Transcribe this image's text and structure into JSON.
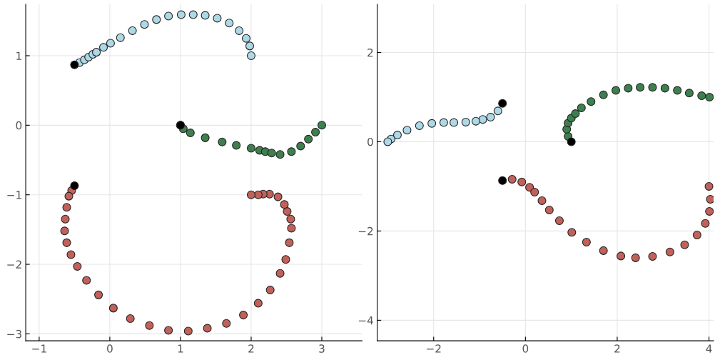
{
  "chart_data": [
    {
      "type": "scatter",
      "xlim": [
        -1.19,
        3.57
      ],
      "ylim": [
        -3.1,
        1.74
      ],
      "xticks": [
        -1,
        0,
        1,
        2,
        3
      ],
      "yticks": [
        -3,
        -2,
        -1,
        0,
        1
      ],
      "grid": true,
      "marker": "circle",
      "series": [
        {
          "color": "#add8e6",
          "x": [
            -0.43,
            -0.36,
            -0.3,
            -0.24,
            -0.19,
            -0.09,
            0.01,
            0.15,
            0.32,
            0.49,
            0.66,
            0.83,
            1.01,
            1.18,
            1.35,
            1.52,
            1.69,
            1.83,
            1.93,
            1.98,
            2.0
          ],
          "values": [
            0.9,
            0.94,
            0.98,
            1.02,
            1.05,
            1.12,
            1.18,
            1.26,
            1.36,
            1.45,
            1.52,
            1.57,
            1.59,
            1.59,
            1.58,
            1.54,
            1.47,
            1.36,
            1.25,
            1.14,
            1.0
          ]
        },
        {
          "color": "#3f7f4f",
          "x": [
            1.0,
            1.04,
            1.14,
            1.35,
            1.59,
            1.79,
            2.0,
            2.12,
            2.2,
            2.29,
            2.41,
            2.57,
            2.7,
            2.81,
            2.91,
            3.0
          ],
          "values": [
            0,
            -0.05,
            -0.11,
            -0.18,
            -0.24,
            -0.29,
            -0.33,
            -0.36,
            -0.38,
            -0.4,
            -0.42,
            -0.38,
            -0.3,
            -0.2,
            -0.1,
            0
          ]
        },
        {
          "color": "#c1615a",
          "x": [
            -0.54,
            -0.58,
            -0.61,
            -0.63,
            -0.64,
            -0.61,
            -0.55,
            -0.46,
            -0.33,
            -0.16,
            0.05,
            0.29,
            0.56,
            0.83,
            1.11,
            1.38,
            1.65,
            1.89,
            2.1,
            2.27,
            2.41,
            2.49,
            2.54,
            2.57,
            2.56,
            2.51,
            2.47,
            2.38,
            2.26,
            2.17,
            2.1,
            2.0
          ],
          "values": [
            -0.94,
            -1.02,
            -1.18,
            -1.35,
            -1.52,
            -1.69,
            -1.86,
            -2.03,
            -2.23,
            -2.44,
            -2.63,
            -2.78,
            -2.88,
            -2.95,
            -2.96,
            -2.92,
            -2.85,
            -2.73,
            -2.56,
            -2.37,
            -2.13,
            -1.93,
            -1.69,
            -1.48,
            -1.35,
            -1.24,
            -1.14,
            -1.03,
            -0.99,
            -0.99,
            -1.0,
            -1.0
          ]
        },
        {
          "color": "#000000",
          "x": [
            -0.5,
            1.0,
            -0.5
          ],
          "values": [
            0.87,
            0,
            -0.87
          ]
        }
      ]
    },
    {
      "type": "scatter",
      "xlim": [
        -3.23,
        4.1
      ],
      "ylim": [
        -4.46,
        3.08
      ],
      "xticks": [
        -2,
        0,
        2,
        4
      ],
      "yticks": [
        -4,
        -2,
        0,
        2
      ],
      "grid": true,
      "marker": "circle",
      "series": [
        {
          "color": "#add8e6",
          "x": [
            -0.6,
            -0.76,
            -0.93,
            -1.08,
            -1.3,
            -1.56,
            -1.78,
            -2.04,
            -2.31,
            -2.58,
            -2.79,
            -2.93,
            -3.0
          ],
          "values": [
            0.69,
            0.55,
            0.5,
            0.46,
            0.44,
            0.43,
            0.43,
            0.41,
            0.36,
            0.26,
            0.15,
            0.06,
            0
          ]
        },
        {
          "color": "#3f7f4f",
          "x": [
            0.93,
            0.9,
            0.93,
            1.0,
            1.09,
            1.22,
            1.43,
            1.7,
            1.97,
            2.24,
            2.5,
            2.77,
            3.04,
            3.31,
            3.57,
            3.84,
            4.01
          ],
          "values": [
            0.12,
            0.28,
            0.42,
            0.53,
            0.63,
            0.76,
            0.9,
            1.05,
            1.15,
            1.2,
            1.22,
            1.22,
            1.2,
            1.15,
            1.09,
            1.03,
            1.0
          ]
        },
        {
          "color": "#c1615a",
          "x": [
            -0.29,
            -0.08,
            0.09,
            0.2,
            0.36,
            0.52,
            0.74,
            1.01,
            1.33,
            1.7,
            2.08,
            2.4,
            2.77,
            3.15,
            3.47,
            3.74,
            3.92,
            4.01,
            4.03,
            4.0
          ],
          "values": [
            -0.84,
            -0.9,
            -1.02,
            -1.13,
            -1.32,
            -1.53,
            -1.77,
            -2.03,
            -2.25,
            -2.44,
            -2.56,
            -2.6,
            -2.57,
            -2.47,
            -2.31,
            -2.09,
            -1.83,
            -1.56,
            -1.29,
            -1.0
          ]
        },
        {
          "color": "#000000",
          "x": [
            -0.5,
            1.0,
            -0.5
          ],
          "values": [
            0.86,
            0,
            -0.87
          ]
        }
      ]
    }
  ]
}
